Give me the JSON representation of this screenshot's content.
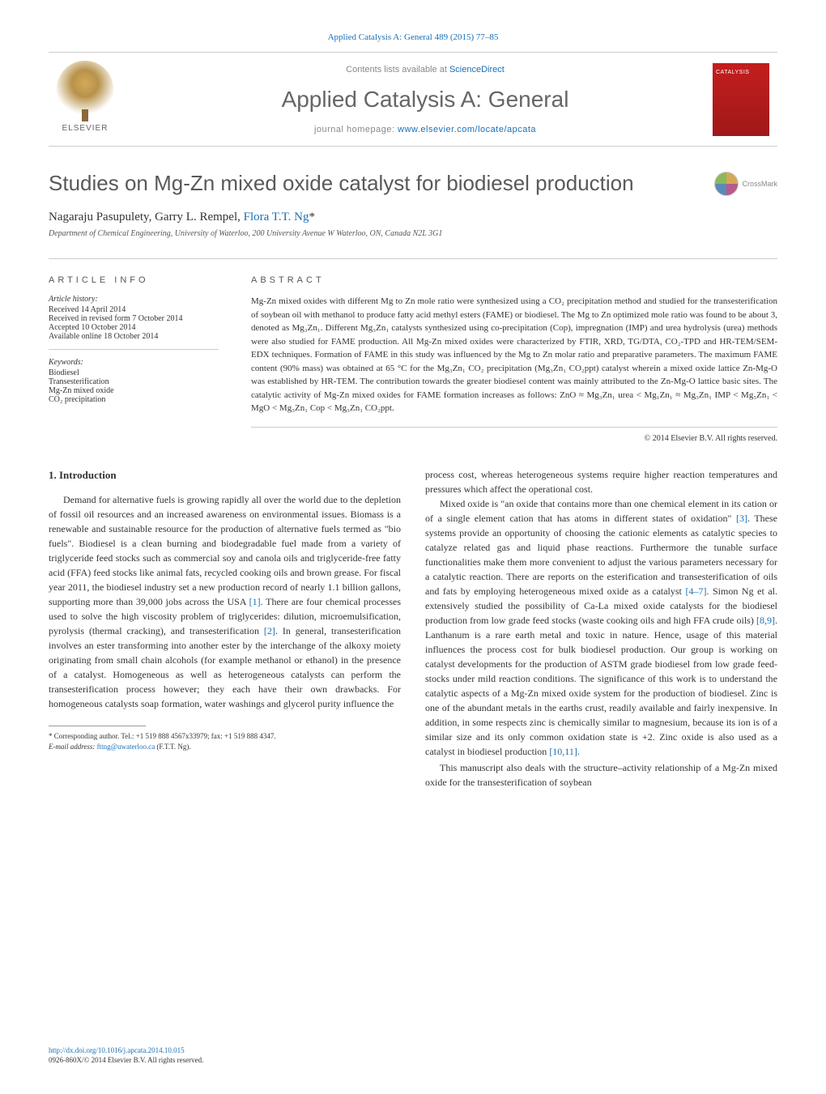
{
  "top_citation": "Applied Catalysis A: General 489 (2015) 77–85",
  "banner": {
    "publisher": "ELSEVIER",
    "contents_text": "Contents lists available at ",
    "contents_link": "ScienceDirect",
    "journal_name": "Applied Catalysis A: General",
    "homepage_label": "journal homepage: ",
    "homepage_url": "www.elsevier.com/locate/apcata",
    "cover_label": "CATALYSIS"
  },
  "article": {
    "title": "Studies on Mg-Zn mixed oxide catalyst for biodiesel production",
    "crossmark": "CrossMark",
    "authors_plain": "Nagaraju Pasupulety, Garry L. Rempel, ",
    "corresponding_author": "Flora T.T. Ng",
    "asterisk": "*",
    "affiliation": "Department of Chemical Engineering, University of Waterloo, 200 University Avenue W Waterloo, ON, Canada N2L 3G1"
  },
  "info": {
    "label": "article info",
    "history_head": "Article history:",
    "received": "Received 14 April 2014",
    "revised": "Received in revised form 7 October 2014",
    "accepted": "Accepted 10 October 2014",
    "online": "Available online 18 October 2014",
    "keywords_head": "Keywords:",
    "keywords": [
      "Biodiesel",
      "Transesterification",
      "Mg-Zn mixed oxide",
      "CO₂ precipitation"
    ]
  },
  "abstract": {
    "label": "abstract",
    "text": "Mg-Zn mixed oxides with different Mg to Zn mole ratio were synthesized using a CO₂ precipitation method and studied for the transesterification of soybean oil with methanol to produce fatty acid methyl esters (FAME) or biodiesel. The Mg to Zn optimized mole ratio was found to be about 3, denoted as Mg₃Zn₁. Different Mg₃Zn₁ catalysts synthesized using co-precipitation (Cop), impregnation (IMP) and urea hydrolysis (urea) methods were also studied for FAME production. All Mg-Zn mixed oxides were characterized by FTIR, XRD, TG/DTA, CO₂-TPD and HR-TEM/SEM-EDX techniques. Formation of FAME in this study was influenced by the Mg to Zn molar ratio and preparative parameters. The maximum FAME content (90% mass) was obtained at 65 °C for the Mg₃Zn₁ CO₂ precipitation (Mg₃Zn₁ CO₂ppt) catalyst wherein a mixed oxide lattice Zn-Mg-O was established by HR-TEM. The contribution towards the greater biodiesel content was mainly attributed to the Zn-Mg-O lattice basic sites. The catalytic activity of Mg-Zn mixed oxides for FAME formation increases as follows: ZnO ≈ Mg₃Zn₁ urea < Mg₁Zn₁ ≈ Mg₃Zn₁ IMP < Mg₅Zn₁ < MgO < Mg₃Zn₁ Cop < Mg₃Zn₁ CO₂ppt.",
    "copyright": "© 2014 Elsevier B.V. All rights reserved."
  },
  "body": {
    "section_number": "1.",
    "section_title": "Introduction",
    "col1_p1": "Demand for alternative fuels is growing rapidly all over the world due to the depletion of fossil oil resources and an increased awareness on environmental issues. Biomass is a renewable and sustainable resource for the production of alternative fuels termed as \"bio fuels\". Biodiesel is a clean burning and biodegradable fuel made from a variety of triglyceride feed stocks such as commercial soy and canola oils and triglyceride-free fatty acid (FFA) feed stocks like animal fats, recycled cooking oils and brown grease. For fiscal year 2011, the biodiesel industry set a new production record of nearly 1.1 billion gallons, supporting more than 39,000 jobs across the USA ",
    "ref1": "[1]",
    "col1_p1b": ". There are four chemical processes used to solve the high viscosity problem of triglycerides: dilution, microemulsification, pyrolysis (thermal cracking), and transesterification ",
    "ref2": "[2]",
    "col1_p1c": ". In general, transesterification involves an ester transforming into another ester by the interchange of the alkoxy moiety originating from small chain alcohols (for example methanol or ethanol) in the presence of a catalyst. Homogeneous as well as heterogeneous catalysts can perform the transesterification process however; they each have their own drawbacks. For homogeneous catalysts soap formation, water washings and glycerol purity influence the",
    "col2_p1": "process cost, whereas heterogeneous systems require higher reaction temperatures and pressures which affect the operational cost.",
    "col2_p2a": "Mixed oxide is \"an oxide that contains more than one chemical element in its cation or of a single element cation that has atoms in different states of oxidation\" ",
    "ref3": "[3]",
    "col2_p2b": ". These systems provide an opportunity of choosing the cationic elements as catalytic species to catalyze related gas and liquid phase reactions. Furthermore the tunable surface functionalities make them more convenient to adjust the various parameters necessary for a catalytic reaction. There are reports on the esterification and transesterification of oils and fats by employing heterogeneous mixed oxide as a catalyst ",
    "ref47": "[4–7]",
    "col2_p2c": ". Simon Ng et al. extensively studied the possibility of Ca-La mixed oxide catalysts for the biodiesel production from low grade feed stocks (waste cooking oils and high FFA crude oils) ",
    "ref89": "[8,9]",
    "col2_p2d": ". Lanthanum is a rare earth metal and toxic in nature. Hence, usage of this material influences the process cost for bulk biodiesel production. Our group is working on catalyst developments for the production of ASTM grade biodiesel from low grade feed-stocks under mild reaction conditions. The significance of this work is to understand the catalytic aspects of a Mg-Zn mixed oxide system for the production of biodiesel. Zinc is one of the abundant metals in the earths crust, readily available and fairly inexpensive. In addition, in some respects zinc is chemically similar to magnesium, because its ion is of a similar size and its only common oxidation state is +2. Zinc oxide is also used as a catalyst in biodiesel production ",
    "ref1011": "[10,11]",
    "col2_p2e": ".",
    "col2_p3": "This manuscript also deals with the structure–activity relationship of a Mg-Zn mixed oxide for the transesterification of soybean"
  },
  "footnote": {
    "marker": "*",
    "corr_label": " Corresponding author. Tel.: +1 519 888 4567x33979; fax: +1 519 888 4347.",
    "email_label": "E-mail address: ",
    "email": "fttng@uwaterloo.ca",
    "email_suffix": " (F.T.T. Ng)."
  },
  "doi": {
    "url": "http://dx.doi.org/10.1016/j.apcata.2014.10.015",
    "issn_line": "0926-860X/© 2014 Elsevier B.V. All rights reserved."
  }
}
